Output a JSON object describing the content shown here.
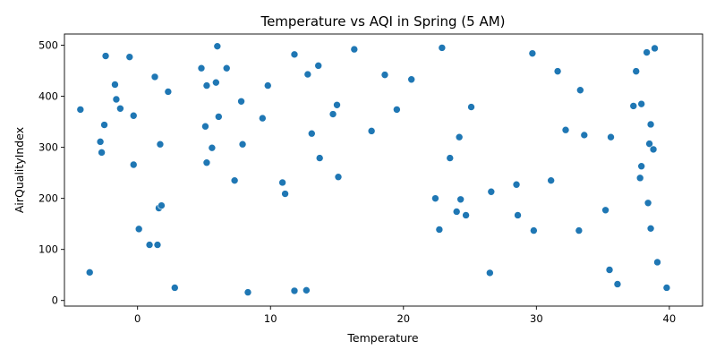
{
  "chart_data": {
    "type": "scatter",
    "title": "Temperature vs AQI in Spring (5 AM)",
    "xlabel": "Temperature",
    "ylabel": "AirQualityIndex",
    "xlim": [
      -5.5,
      42.5
    ],
    "ylim": [
      -11,
      522
    ],
    "xticks": [
      0,
      10,
      20,
      30,
      40
    ],
    "yticks": [
      0,
      100,
      200,
      300,
      400,
      500
    ],
    "grid": false,
    "marker_color": "#1f77b4",
    "points": [
      [
        -4.3,
        374
      ],
      [
        -3.6,
        55
      ],
      [
        -2.8,
        311
      ],
      [
        -2.7,
        290
      ],
      [
        -2.5,
        344
      ],
      [
        -2.4,
        479
      ],
      [
        -1.7,
        423
      ],
      [
        -1.6,
        394
      ],
      [
        -1.3,
        376
      ],
      [
        -0.6,
        477
      ],
      [
        -0.3,
        362
      ],
      [
        -0.3,
        266
      ],
      [
        0.1,
        140
      ],
      [
        0.9,
        109
      ],
      [
        1.3,
        438
      ],
      [
        1.5,
        109
      ],
      [
        1.6,
        181
      ],
      [
        1.7,
        306
      ],
      [
        1.8,
        186
      ],
      [
        2.3,
        409
      ],
      [
        2.8,
        25
      ],
      [
        4.8,
        455
      ],
      [
        5.1,
        341
      ],
      [
        5.2,
        421
      ],
      [
        5.2,
        270
      ],
      [
        5.6,
        299
      ],
      [
        5.9,
        427
      ],
      [
        6.0,
        498
      ],
      [
        6.1,
        360
      ],
      [
        6.7,
        455
      ],
      [
        7.3,
        235
      ],
      [
        7.8,
        390
      ],
      [
        7.9,
        306
      ],
      [
        8.3,
        16
      ],
      [
        9.4,
        357
      ],
      [
        9.8,
        421
      ],
      [
        10.9,
        231
      ],
      [
        11.1,
        209
      ],
      [
        11.8,
        482
      ],
      [
        11.8,
        19
      ],
      [
        12.7,
        20
      ],
      [
        12.8,
        443
      ],
      [
        13.1,
        327
      ],
      [
        13.6,
        460
      ],
      [
        13.7,
        279
      ],
      [
        14.7,
        365
      ],
      [
        15.0,
        383
      ],
      [
        15.1,
        242
      ],
      [
        16.3,
        492
      ],
      [
        17.6,
        332
      ],
      [
        18.6,
        442
      ],
      [
        19.5,
        374
      ],
      [
        20.6,
        433
      ],
      [
        22.4,
        200
      ],
      [
        22.7,
        139
      ],
      [
        22.9,
        495
      ],
      [
        23.5,
        279
      ],
      [
        24.0,
        174
      ],
      [
        24.2,
        320
      ],
      [
        24.3,
        198
      ],
      [
        24.7,
        167
      ],
      [
        25.1,
        379
      ],
      [
        26.5,
        54
      ],
      [
        26.6,
        213
      ],
      [
        28.5,
        227
      ],
      [
        28.6,
        167
      ],
      [
        29.7,
        484
      ],
      [
        29.8,
        137
      ],
      [
        31.1,
        235
      ],
      [
        31.6,
        449
      ],
      [
        32.2,
        334
      ],
      [
        33.2,
        137
      ],
      [
        33.3,
        412
      ],
      [
        33.6,
        324
      ],
      [
        35.2,
        177
      ],
      [
        35.5,
        60
      ],
      [
        35.6,
        320
      ],
      [
        36.1,
        32
      ],
      [
        37.3,
        381
      ],
      [
        37.5,
        449
      ],
      [
        37.8,
        240
      ],
      [
        37.9,
        385
      ],
      [
        37.9,
        263
      ],
      [
        38.3,
        486
      ],
      [
        38.4,
        191
      ],
      [
        38.5,
        307
      ],
      [
        38.6,
        345
      ],
      [
        38.6,
        141
      ],
      [
        38.8,
        296
      ],
      [
        38.9,
        494
      ],
      [
        39.1,
        75
      ],
      [
        39.8,
        25
      ]
    ]
  }
}
